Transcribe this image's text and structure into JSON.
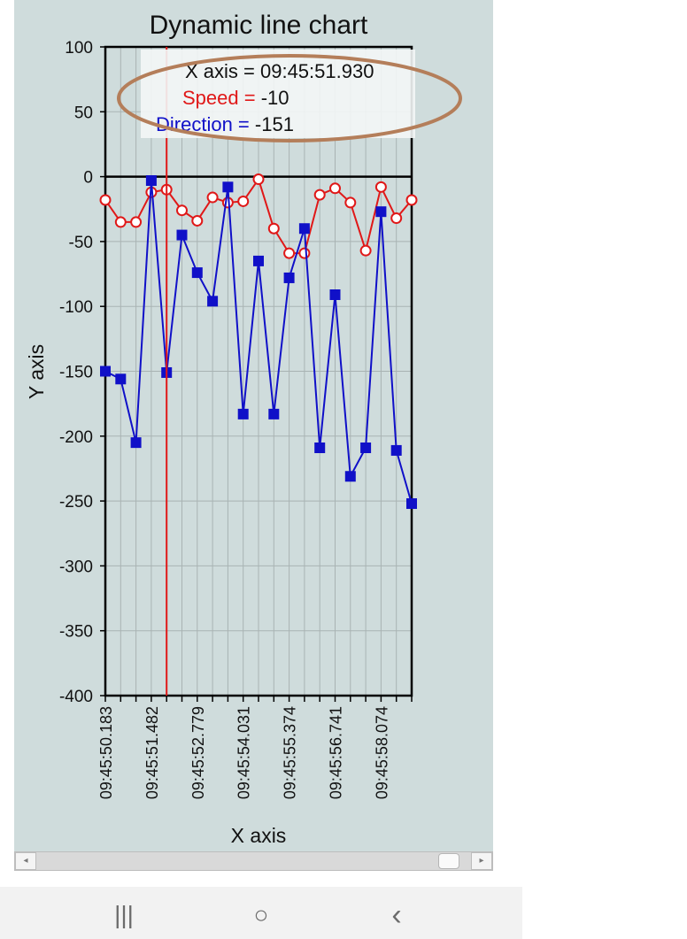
{
  "chart_data": {
    "type": "line",
    "title": "Dynamic line chart",
    "xlabel": "X axis",
    "ylabel": "Y axis",
    "ylim": [
      -400,
      100
    ],
    "yticks": [
      100,
      50,
      0,
      -50,
      -100,
      -150,
      -200,
      -250,
      -300,
      -350,
      -400
    ],
    "x_tick_labels": [
      "09:45:50.183",
      "09:45:51.482",
      "09:45:52.779",
      "09:45:54.031",
      "09:45:55.374",
      "09:45:56.741",
      "09:45:58.074"
    ],
    "grid": true,
    "series": [
      {
        "name": "Speed",
        "color": "#e01818",
        "marker": "open-circle",
        "values": [
          -18,
          -35,
          -35,
          -12,
          -10,
          -26,
          -34,
          -16,
          -20,
          -19,
          -2,
          -40,
          -59,
          -59,
          -14,
          -9,
          -20,
          -57,
          -8,
          -32,
          -18
        ]
      },
      {
        "name": "Direction",
        "color": "#1010c8",
        "marker": "filled-square",
        "values": [
          -150,
          -156,
          -205,
          -3,
          -151,
          -45,
          -74,
          -96,
          -8,
          -183,
          -65,
          -183,
          -78,
          -40,
          -209,
          -91,
          -231,
          -209,
          -27,
          -211,
          -252
        ]
      }
    ],
    "cursor": {
      "x_label": "X axis = 09:45:51.930",
      "speed_label": "Speed = ",
      "speed_value": "-10",
      "direction_label": "Direction = ",
      "direction_value": "-151",
      "point_index": 4
    }
  },
  "scrollbar": {
    "left_arrow": "◂",
    "right_arrow": "▸"
  },
  "navbar": {
    "recent_icon": "|||",
    "home_icon": "○",
    "back_icon": "‹"
  }
}
